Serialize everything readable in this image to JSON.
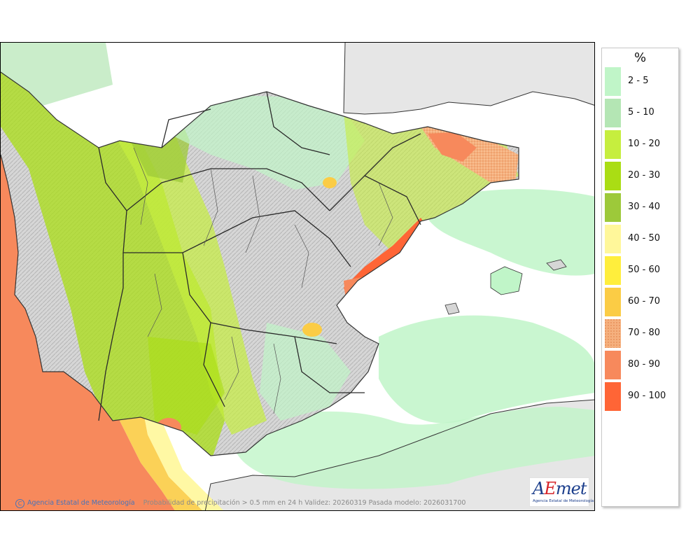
{
  "map": {
    "caption": "Probabilidad de precipitación > 0.5 mm en 24 h Validez: 20260319 Pasada modelo: 2026031700",
    "agency": "Agencia Estatal de Meteorología",
    "copyright_symbol": "C",
    "logo": {
      "a": "A",
      "e": "E",
      "met": "met",
      "subtitle": "Agencia Estatal de Meteorología"
    }
  },
  "legend": {
    "title": "%",
    "items": [
      {
        "label": "2 - 5",
        "color": "#c0f5c8"
      },
      {
        "label": "5 - 10",
        "color": "#b4e6b4"
      },
      {
        "label": "10 - 20",
        "color": "#c6ee3e"
      },
      {
        "label": "20 - 30",
        "color": "#aadd14"
      },
      {
        "label": "30 - 40",
        "color": "#9dc93a"
      },
      {
        "label": "40 - 50",
        "color": "#fff79a"
      },
      {
        "label": "50 - 60",
        "color": "#ffee3c"
      },
      {
        "label": "60 - 70",
        "color": "#fbcc45"
      },
      {
        "label": "70 - 80",
        "color": "#f5b07e"
      },
      {
        "label": "80 - 90",
        "color": "#f7895c"
      },
      {
        "label": "90 - 100",
        "color": "#ff6536"
      }
    ]
  }
}
